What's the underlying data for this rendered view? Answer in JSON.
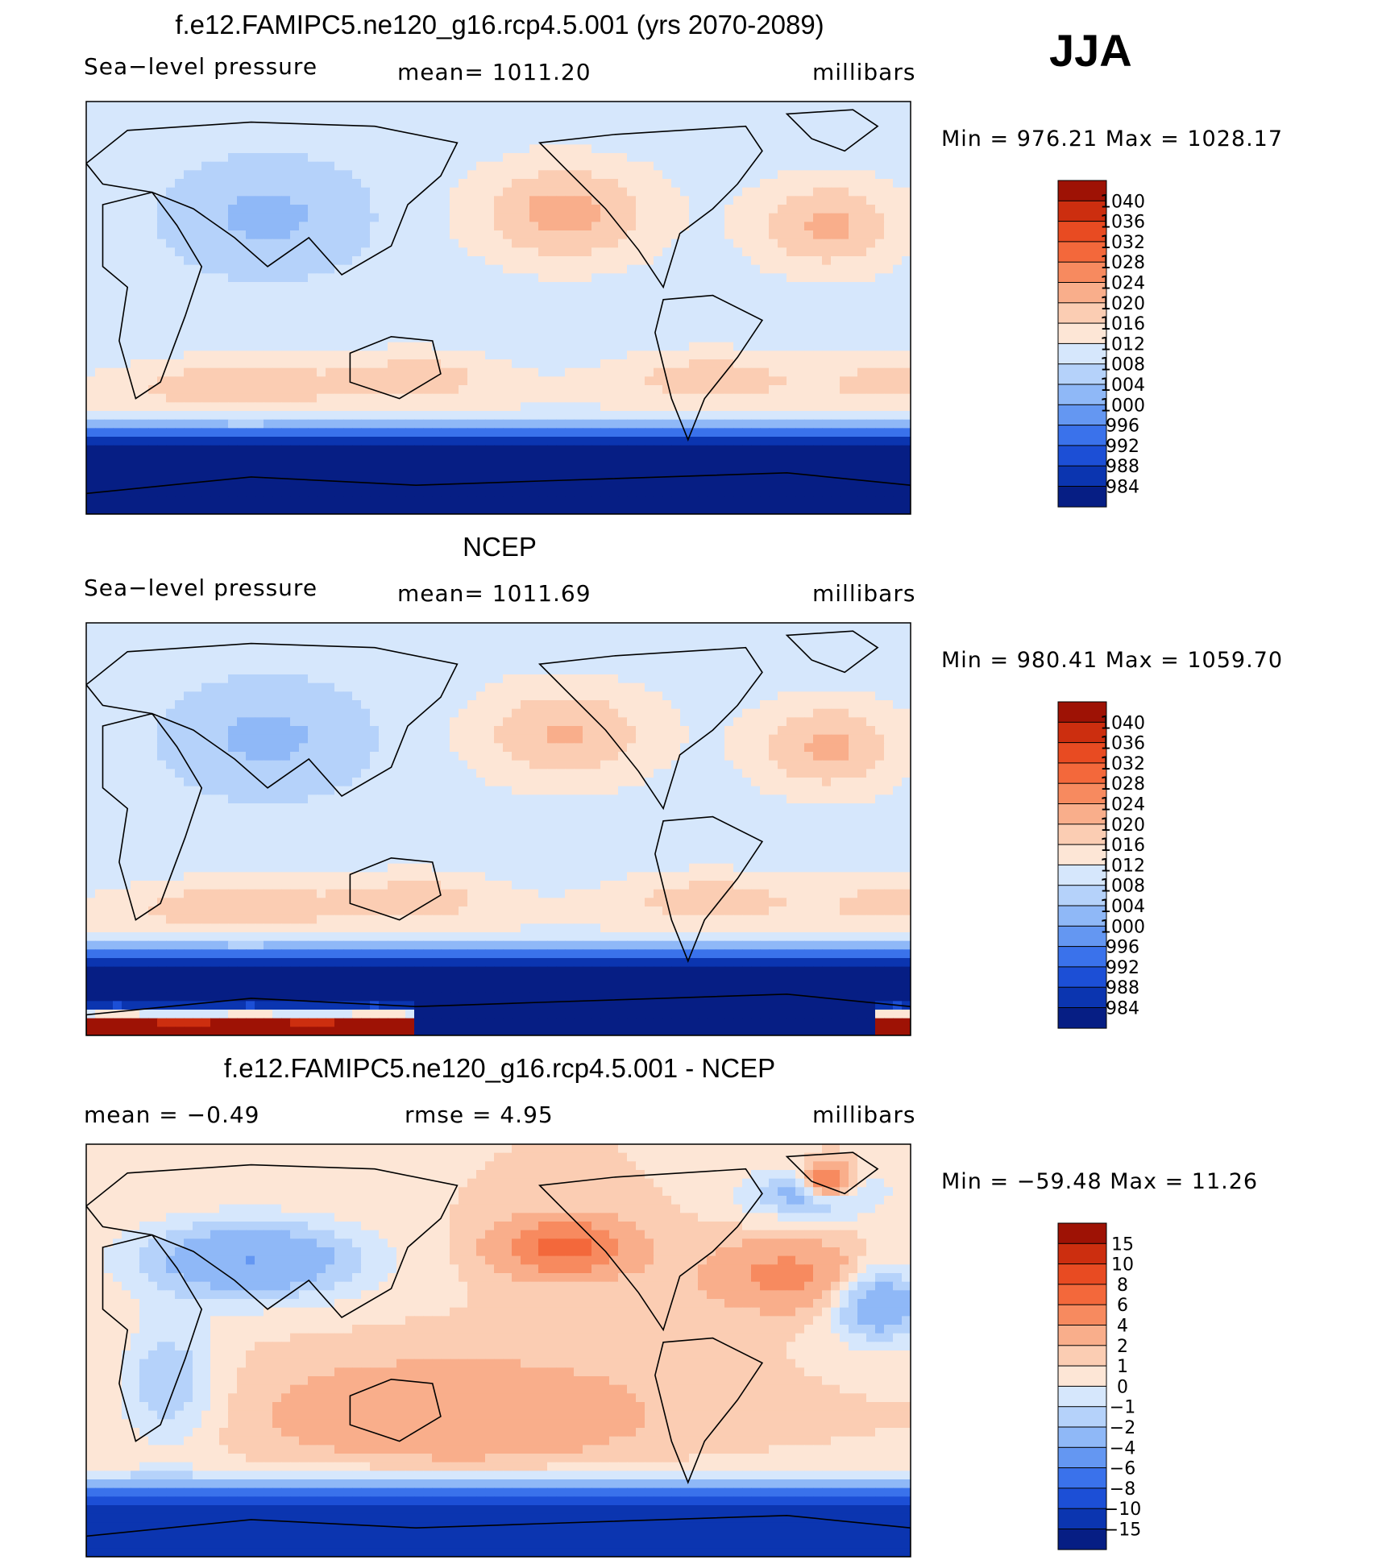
{
  "season": "JJA",
  "colors": {
    "pos": [
      "#fde6d6",
      "#fbcdb3",
      "#f9ae8b",
      "#f78a5f",
      "#f3683b",
      "#e84b22",
      "#cc2e0f",
      "#9e1205"
    ],
    "neg": [
      "#d6e7fc",
      "#b5d2fa",
      "#8fb8f7",
      "#6497f2",
      "#3a72eb",
      "#1c4fd6",
      "#0b35b0",
      "#061e84"
    ],
    "border": "#ecf4fd"
  },
  "chart_data": [
    {
      "type": "heatmap",
      "title": "f.e12.FAMIPC5.ne120_g16.rcp4.5.001 (yrs 2070-2089)",
      "left_label": "Sea−level pressure",
      "center_label": "mean=  1011.20",
      "units": "millibars",
      "minmax": "Min  =  976.21  Max  =  1028.17",
      "min": 976.21,
      "max": 1028.17,
      "mean": 1011.2,
      "colorbar_levels": [
        "1040",
        "1036",
        "1032",
        "1028",
        "1024",
        "1020",
        "1016",
        "1012",
        "1008",
        "1004",
        "1000",
        "996",
        "992",
        "988",
        "984"
      ],
      "field": "model"
    },
    {
      "type": "heatmap",
      "title": "NCEP",
      "left_label": "Sea−level pressure",
      "center_label": "mean=  1011.69",
      "units": "millibars",
      "minmax": "Min  =  980.41  Max  =  1059.70",
      "min": 980.41,
      "max": 1059.7,
      "mean": 1011.69,
      "colorbar_levels": [
        "1040",
        "1036",
        "1032",
        "1028",
        "1024",
        "1020",
        "1016",
        "1012",
        "1008",
        "1004",
        "1000",
        "996",
        "992",
        "988",
        "984"
      ],
      "field": "obs"
    },
    {
      "type": "heatmap",
      "title": "f.e12.FAMIPC5.ne120_g16.rcp4.5.001 - NCEP",
      "left_label": "mean  =    −0.49",
      "center_label": "rmse  =     4.95",
      "units": "millibars",
      "minmax": "Min  =  −59.48  Max  =    11.26",
      "min": -59.48,
      "max": 11.26,
      "mean": -0.49,
      "rmse": 4.95,
      "colorbar_levels": [
        "15",
        "10",
        "8",
        "6",
        "4",
        "2",
        "1",
        "0",
        "−1",
        "−2",
        "−4",
        "−6",
        "−8",
        "−10",
        "−15"
      ],
      "field": "diff"
    }
  ]
}
